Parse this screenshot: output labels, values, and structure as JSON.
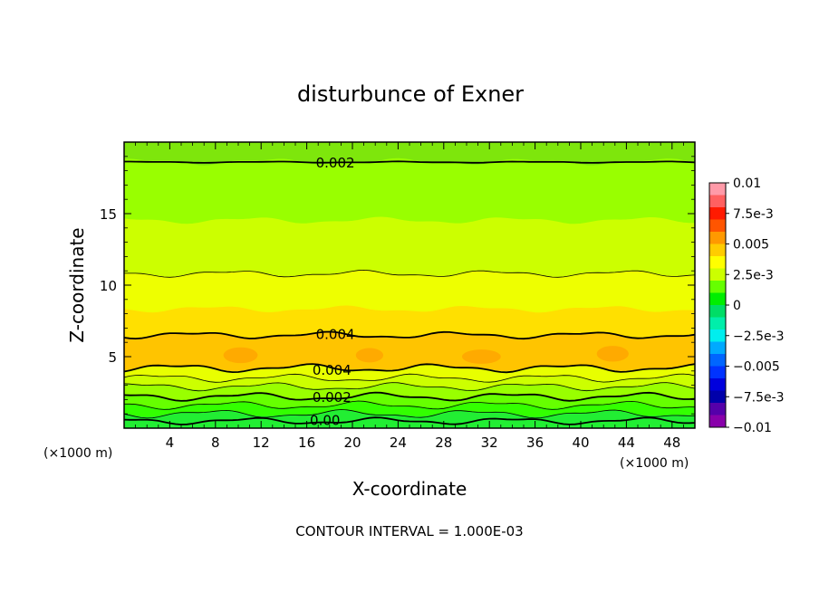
{
  "chart_data": {
    "type": "heatmap",
    "title": "disturbunce of Exner",
    "xlabel": "X-coordinate",
    "ylabel": "Z-coordinate",
    "x_unit": "(×1000 m)",
    "z_unit": "(×1000 m)",
    "xlim": [
      0,
      50
    ],
    "ylim": [
      0,
      20
    ],
    "x_ticks": [
      "4",
      "8",
      "12",
      "16",
      "20",
      "24",
      "28",
      "32",
      "36",
      "40",
      "44",
      "48"
    ],
    "y_ticks": [
      "5",
      "10",
      "15"
    ],
    "grid": false,
    "footer": "CONTOUR INTERVAL = 1.000E-03",
    "contour_interval": 0.001,
    "contour_labels": [
      {
        "text": "0.002",
        "x": 18.5,
        "z": 18.6
      },
      {
        "text": "0.004",
        "x": 18.5,
        "z": 6.6
      },
      {
        "text": "0.004",
        "x": 18.2,
        "z": 4.1
      },
      {
        "text": "0.002",
        "x": 18.2,
        "z": 2.2
      },
      {
        "text": "0.00",
        "x": 17.6,
        "z": 0.6
      }
    ],
    "color_bands": [
      {
        "z0": 18.6,
        "z1": 20.0,
        "value": 0.0015,
        "color": "#7ee60c"
      },
      {
        "z0": 14.5,
        "z1": 18.6,
        "value": 0.0022,
        "color": "#99ff00"
      },
      {
        "z0": 10.8,
        "z1": 14.5,
        "value": 0.0028,
        "color": "#ccff00"
      },
      {
        "z0": 8.3,
        "z1": 10.8,
        "value": 0.0033,
        "color": "#eeff00"
      },
      {
        "z0": 6.5,
        "z1": 8.3,
        "value": 0.0038,
        "color": "#ffe000"
      },
      {
        "z0": 4.2,
        "z1": 6.5,
        "value": 0.0043,
        "color": "#ffc400"
      },
      {
        "z0": 3.5,
        "z1": 4.2,
        "value": 0.0036,
        "color": "#e8ff00"
      },
      {
        "z0": 2.9,
        "z1": 3.5,
        "value": 0.0031,
        "color": "#ccff00"
      },
      {
        "z0": 2.2,
        "z1": 2.9,
        "value": 0.0026,
        "color": "#99ff00"
      },
      {
        "z0": 1.6,
        "z1": 2.2,
        "value": 0.0018,
        "color": "#66ff00"
      },
      {
        "z0": 1.0,
        "z1": 1.6,
        "value": 0.0012,
        "color": "#33ff00"
      },
      {
        "z0": 0.0,
        "z1": 1.0,
        "value": 0.0004,
        "color": "#22ee33"
      }
    ],
    "contour_lines": [
      {
        "z": 18.6,
        "amp": 0.05,
        "weight": "thick"
      },
      {
        "z": 10.8,
        "amp": 0.25,
        "weight": "thin"
      },
      {
        "z": 6.5,
        "amp": 0.25,
        "weight": "thick"
      },
      {
        "z": 4.2,
        "amp": 0.3,
        "weight": "thick"
      },
      {
        "z": 3.5,
        "amp": 0.3,
        "weight": "thin"
      },
      {
        "z": 2.9,
        "amp": 0.3,
        "weight": "thin"
      },
      {
        "z": 2.2,
        "amp": 0.3,
        "weight": "thick"
      },
      {
        "z": 1.6,
        "amp": 0.3,
        "weight": "thin"
      },
      {
        "z": 1.0,
        "amp": 0.3,
        "weight": "thin"
      },
      {
        "z": 0.5,
        "amp": 0.25,
        "weight": "thick"
      }
    ],
    "maxima": [
      {
        "x": 10.2,
        "z": 5.1,
        "rx": 1.5,
        "rz": 0.55
      },
      {
        "x": 21.5,
        "z": 5.1,
        "rx": 1.2,
        "rz": 0.5
      },
      {
        "x": 31.3,
        "z": 5.0,
        "rx": 1.7,
        "rz": 0.5
      },
      {
        "x": 42.8,
        "z": 5.2,
        "rx": 1.4,
        "rz": 0.55
      }
    ],
    "colorbar": {
      "min": -0.01,
      "max": 0.01,
      "labels": [
        "0.01",
        "7.5e-3",
        "0.005",
        "2.5e-3",
        "0",
        "−2.5e-3",
        "−0.005",
        "−7.5e-3",
        "−0.01"
      ],
      "colors": [
        "#ff9aa8",
        "#ff6060",
        "#ff1a00",
        "#ff5500",
        "#ff9900",
        "#ffcc00",
        "#ffff00",
        "#ccff00",
        "#66ff00",
        "#00ee00",
        "#00dd66",
        "#00eeaa",
        "#00eeee",
        "#00aaff",
        "#0066ff",
        "#0033ff",
        "#0000dd",
        "#0000aa",
        "#5500aa",
        "#8800aa"
      ]
    }
  }
}
